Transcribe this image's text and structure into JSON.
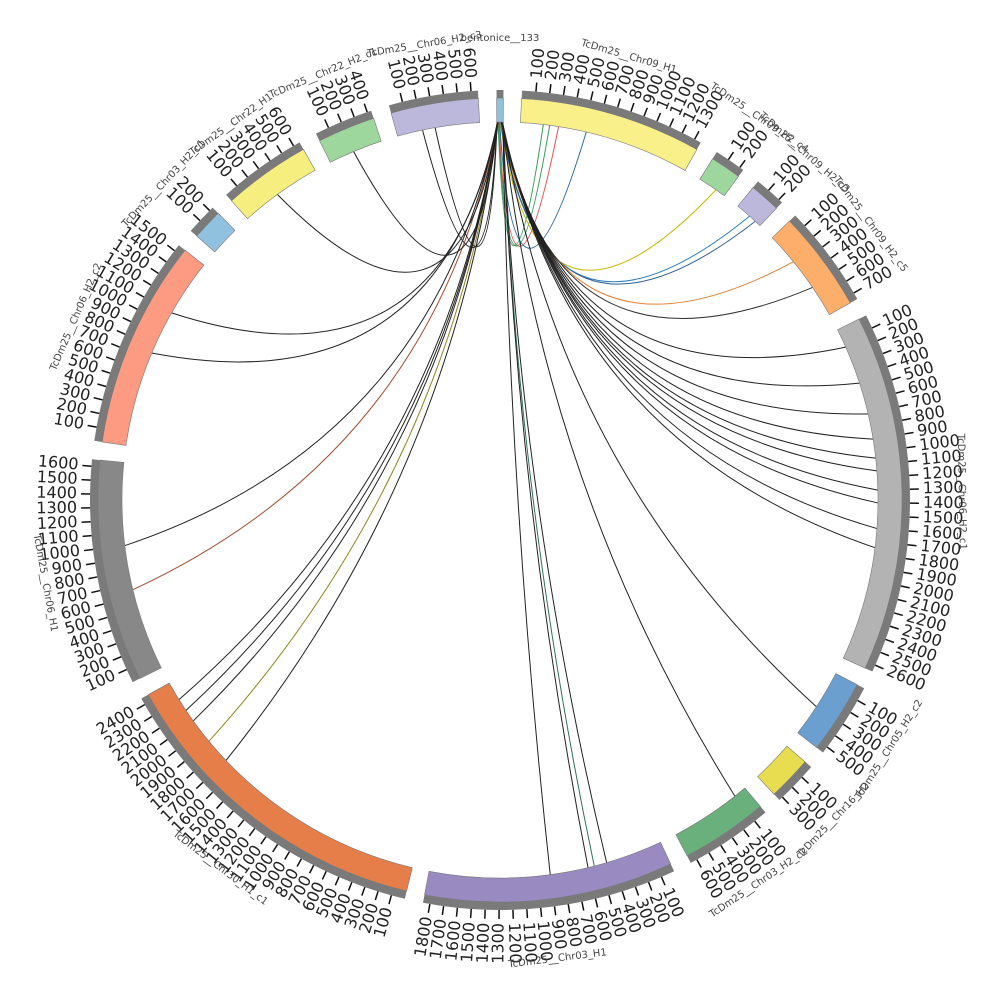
{
  "chart_data": {
    "type": "circos",
    "segments": [
      {
        "name": "bentonice__133",
        "color": "#8fc0dd",
        "length": 50,
        "ticks": []
      },
      {
        "name": "TcDm25__Chr09_H1",
        "color": "#f9f08a",
        "length": 1350,
        "ticks": [
          100,
          200,
          300,
          400,
          500,
          600,
          700,
          800,
          900,
          1000,
          1100,
          1200,
          1300
        ]
      },
      {
        "name": "TcDm25__Chr09_H2_c4",
        "color": "#9ed79e",
        "length": 230,
        "ticks": [
          100,
          200
        ]
      },
      {
        "name": "TcDm25__Chr09_H2_c3",
        "color": "#bcb8dc",
        "length": 230,
        "ticks": [
          100,
          200
        ]
      },
      {
        "name": "TcDm25__Chr09_H2_c5",
        "color": "#fdae6b",
        "length": 750,
        "ticks": [
          100,
          200,
          300,
          400,
          500,
          600,
          700
        ]
      },
      {
        "name": "TcDm25__Chr06_H2_c1",
        "color": "#b3b3b3",
        "length": 2650,
        "ticks": [
          100,
          200,
          300,
          400,
          500,
          600,
          700,
          800,
          900,
          1000,
          1100,
          1200,
          1300,
          1400,
          1500,
          1600,
          1700,
          1800,
          1900,
          2000,
          2100,
          2200,
          2300,
          2400,
          2500,
          2600
        ]
      },
      {
        "name": "TcDm25__Chr05_H2_c2",
        "color": "#6a9fd0",
        "length": 550,
        "ticks": [
          100,
          200,
          300,
          400,
          500
        ]
      },
      {
        "name": "TcDm25__Chr16_H2",
        "color": "#e8dc50",
        "length": 330,
        "ticks": [
          100,
          200,
          300
        ]
      },
      {
        "name": "TcDm25__Chr03_H2_c2",
        "color": "#6ab07d",
        "length": 650,
        "ticks": [
          100,
          200,
          300,
          400,
          500,
          600
        ]
      },
      {
        "name": "TcDm25__Chr03_H1",
        "color": "#9a8ac2",
        "length": 1850,
        "ticks": [
          100,
          200,
          300,
          400,
          500,
          600,
          700,
          800,
          900,
          1000,
          1100,
          1200,
          1300,
          1400,
          1500,
          1600,
          1700,
          1800
        ]
      },
      {
        "name": "TcDm25__Chr30_H1_c1",
        "color": "#e67e4a",
        "length": 2450,
        "ticks": [
          100,
          200,
          300,
          400,
          500,
          600,
          700,
          800,
          900,
          1000,
          1100,
          1200,
          1300,
          1400,
          1500,
          1600,
          1700,
          1800,
          1900,
          2000,
          2100,
          2200,
          2300,
          2400
        ]
      },
      {
        "name": "TcDm25__Chr06_H1",
        "color": "#888888",
        "length": 1650,
        "ticks": [
          100,
          200,
          300,
          400,
          500,
          600,
          700,
          800,
          900,
          1000,
          1100,
          1200,
          1300,
          1400,
          1500,
          1600
        ]
      },
      {
        "name": "TcDm25__Chr06_H2_c2",
        "color": "#fc9a82",
        "length": 1550,
        "ticks": [
          100,
          200,
          300,
          400,
          500,
          600,
          700,
          800,
          900,
          1000,
          1100,
          1200,
          1300,
          1400,
          1500
        ]
      },
      {
        "name": "TcDm25__Chr03_H2_c1",
        "color": "#90c2e0",
        "length": 230,
        "ticks": [
          100,
          200
        ]
      },
      {
        "name": "TcDm25__Chr22_H1",
        "color": "#f6ee7e",
        "length": 650,
        "ticks": [
          100,
          200,
          300,
          400,
          500,
          600
        ]
      },
      {
        "name": "TcDm25__Chr22_H2_c1",
        "color": "#9ed79e",
        "length": 430,
        "ticks": [
          100,
          200,
          300,
          400
        ]
      },
      {
        "name": "TcDm25__Chr06_H2_c3",
        "color": "#bcb8dc",
        "length": 650,
        "ticks": [
          100,
          200,
          300,
          400,
          500,
          600
        ]
      }
    ],
    "links": [
      {
        "source": [
          0,
          10
        ],
        "target": [
          1,
          180
        ],
        "color": "#3a9a5a"
      },
      {
        "source": [
          0,
          14
        ],
        "target": [
          1,
          230
        ],
        "color": "#3a9a5a"
      },
      {
        "source": [
          0,
          18
        ],
        "target": [
          1,
          300
        ],
        "color": "#d9534f"
      },
      {
        "source": [
          0,
          22
        ],
        "target": [
          1,
          520
        ],
        "color": "#2f6f9f"
      },
      {
        "source": [
          0,
          26
        ],
        "target": [
          2,
          150
        ],
        "color": "#c9b800"
      },
      {
        "source": [
          0,
          28
        ],
        "target": [
          3,
          120
        ],
        "color": "#2f7fbf"
      },
      {
        "source": [
          0,
          30
        ],
        "target": [
          3,
          180
        ],
        "color": "#2f5f8f"
      },
      {
        "source": [
          0,
          32
        ],
        "target": [
          4,
          250
        ],
        "color": "#e08030"
      },
      {
        "source": [
          0,
          34
        ],
        "target": [
          4,
          500
        ],
        "color": "#333333"
      },
      {
        "source": [
          0,
          36
        ],
        "target": [
          5,
          150
        ],
        "color": "#222222"
      },
      {
        "source": [
          0,
          36
        ],
        "target": [
          5,
          450
        ],
        "color": "#222222"
      },
      {
        "source": [
          0,
          38
        ],
        "target": [
          5,
          700
        ],
        "color": "#222222"
      },
      {
        "source": [
          0,
          38
        ],
        "target": [
          5,
          900
        ],
        "color": "#222222"
      },
      {
        "source": [
          0,
          40
        ],
        "target": [
          5,
          1050
        ],
        "color": "#222222"
      },
      {
        "source": [
          0,
          40
        ],
        "target": [
          5,
          1150
        ],
        "color": "#222222"
      },
      {
        "source": [
          0,
          42
        ],
        "target": [
          5,
          1300
        ],
        "color": "#222222"
      },
      {
        "source": [
          0,
          42
        ],
        "target": [
          5,
          1400
        ],
        "color": "#222222"
      },
      {
        "source": [
          0,
          44
        ],
        "target": [
          5,
          1600
        ],
        "color": "#222222"
      },
      {
        "source": [
          0,
          44
        ],
        "target": [
          5,
          1750
        ],
        "color": "#222222"
      },
      {
        "source": [
          0,
          45
        ],
        "target": [
          6,
          300
        ],
        "color": "#222222"
      },
      {
        "source": [
          0,
          45
        ],
        "target": [
          8,
          100
        ],
        "color": "#222222"
      },
      {
        "source": [
          0,
          46
        ],
        "target": [
          9,
          450
        ],
        "color": "#222222"
      },
      {
        "source": [
          0,
          46
        ],
        "target": [
          9,
          550
        ],
        "color": "#2f6f5f"
      },
      {
        "source": [
          0,
          47
        ],
        "target": [
          9,
          600
        ],
        "color": "#222222"
      },
      {
        "source": [
          0,
          47
        ],
        "target": [
          9,
          900
        ],
        "color": "#222222"
      },
      {
        "source": [
          0,
          12
        ],
        "target": [
          10,
          1700
        ],
        "color": "#222222"
      },
      {
        "source": [
          0,
          12
        ],
        "target": [
          10,
          1900
        ],
        "color": "#8a8a20"
      },
      {
        "source": [
          0,
          10
        ],
        "target": [
          10,
          2100
        ],
        "color": "#222222"
      },
      {
        "source": [
          0,
          10
        ],
        "target": [
          10,
          2200
        ],
        "color": "#222222"
      },
      {
        "source": [
          0,
          8
        ],
        "target": [
          10,
          2300
        ],
        "color": "#222222"
      },
      {
        "source": [
          0,
          8
        ],
        "target": [
          11,
          650
        ],
        "color": "#a05030"
      },
      {
        "source": [
          0,
          6
        ],
        "target": [
          11,
          1000
        ],
        "color": "#222222"
      },
      {
        "source": [
          0,
          6
        ],
        "target": [
          12,
          750
        ],
        "color": "#222222"
      },
      {
        "source": [
          0,
          5
        ],
        "target": [
          12,
          1100
        ],
        "color": "#222222"
      },
      {
        "source": [
          0,
          4
        ],
        "target": [
          14,
          300
        ],
        "color": "#222222"
      },
      {
        "source": [
          0,
          3
        ],
        "target": [
          15,
          200
        ],
        "color": "#222222"
      },
      {
        "source": [
          0,
          2
        ],
        "target": [
          16,
          200
        ],
        "color": "#222222"
      },
      {
        "source": [
          0,
          2
        ],
        "target": [
          16,
          300
        ],
        "color": "#222222"
      }
    ]
  }
}
